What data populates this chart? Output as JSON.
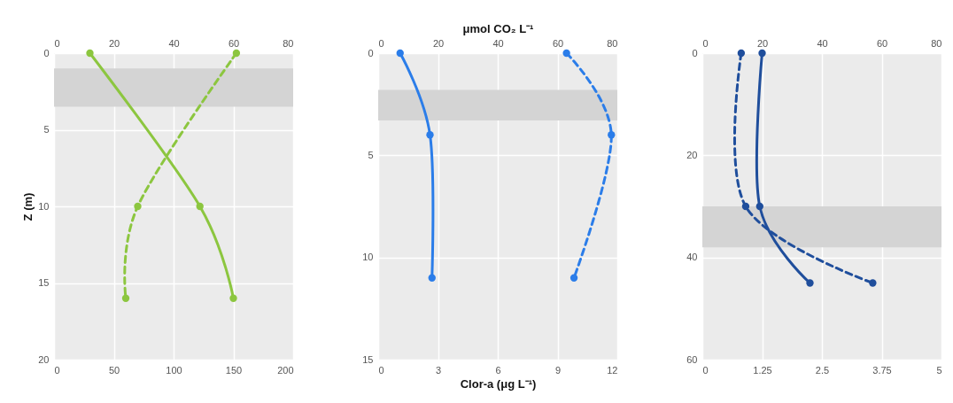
{
  "chart_data": [
    {
      "type": "line",
      "ylabel": "Z (m)",
      "ylim": [
        20,
        0
      ],
      "yticks": [
        0,
        5,
        10,
        15,
        20
      ],
      "xlim": [
        0,
        200
      ],
      "xticks": [
        0,
        50,
        100,
        150,
        200
      ],
      "x2lim": [
        0,
        80
      ],
      "x2ticks": [
        0,
        20,
        40,
        60,
        80
      ],
      "grid": true,
      "marker": "circle",
      "series": [
        {
          "color": "#8cc63f",
          "line_style": "solid",
          "x": [
            30,
            122,
            150
          ],
          "values": [
            0,
            10,
            16
          ]
        },
        {
          "color": "#8cc63f",
          "line_style": "dashed",
          "axis": "x2",
          "x": [
            61,
            28,
            24
          ],
          "values": [
            0,
            10,
            16
          ]
        }
      ],
      "bands": [
        {
          "axis": "y",
          "from": 1,
          "to": 3.5,
          "color": "#d4d4d4"
        }
      ]
    },
    {
      "type": "line",
      "xlabel": "Clor-a (μg L⁻¹)",
      "x2label": "μmol CO₂ L⁻¹",
      "ylim": [
        15,
        0
      ],
      "yticks": [
        0,
        5,
        10,
        15
      ],
      "xlim": [
        0,
        12
      ],
      "xticks": [
        0,
        3,
        6,
        9,
        12
      ],
      "x2lim": [
        0,
        80
      ],
      "x2ticks": [
        0,
        20,
        40,
        60,
        80
      ],
      "grid": true,
      "marker": "circle",
      "series": [
        {
          "color": "#2b7de9",
          "line_style": "solid",
          "x": [
            1.1,
            2.6,
            2.7
          ],
          "values": [
            0,
            4,
            11
          ]
        },
        {
          "color": "#2b7de9",
          "line_style": "dashed",
          "axis": "x2",
          "x": [
            63,
            78,
            65.5
          ],
          "values": [
            0,
            4,
            11
          ]
        }
      ],
      "bands": [
        {
          "axis": "y",
          "from": 1.8,
          "to": 3.3,
          "color": "#d4d4d4"
        }
      ]
    },
    {
      "type": "line",
      "ylim": [
        60,
        0
      ],
      "yticks": [
        0,
        20,
        40,
        60
      ],
      "xlim": [
        0,
        5
      ],
      "xticks": [
        0,
        1.25,
        2.5,
        3.75,
        5
      ],
      "x2lim": [
        0,
        80
      ],
      "x2ticks": [
        0,
        20,
        40,
        60,
        80
      ],
      "grid": true,
      "marker": "circle",
      "series": [
        {
          "color": "#1f4e9c",
          "line_style": "solid",
          "x": [
            1.25,
            1.2,
            2.25
          ],
          "values": [
            0,
            30,
            45
          ]
        },
        {
          "color": "#1f4e9c",
          "line_style": "dashed",
          "axis": "x2",
          "x": [
            13,
            14.5,
            57
          ],
          "values": [
            0,
            30,
            45
          ]
        }
      ],
      "bands": [
        {
          "axis": "y",
          "from": 30,
          "to": 38,
          "color": "#d4d4d4"
        }
      ]
    }
  ]
}
